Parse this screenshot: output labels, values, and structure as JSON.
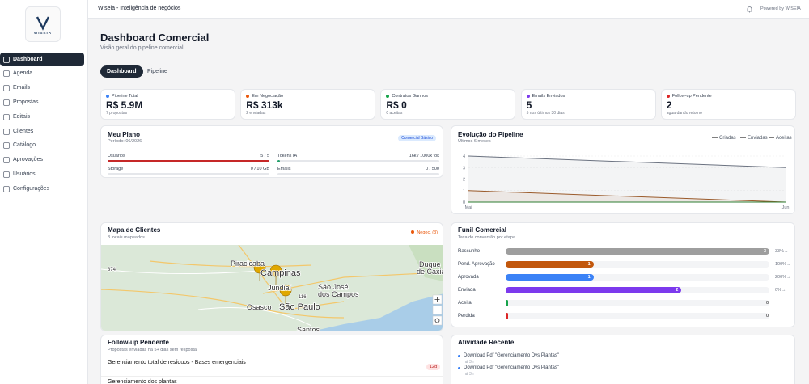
{
  "app": {
    "logo": "WISEIA",
    "title": "Wiseia - Inteligência de negócios",
    "powered": "Powered by WISEIA"
  },
  "sidebar": {
    "active": 0,
    "items": [
      "Dashboard",
      "Agenda",
      "Emails",
      "Propostas",
      "Editais",
      "Clientes",
      "Catálogo",
      "Aprovações",
      "Usuários",
      "Configurações"
    ]
  },
  "header": {
    "title": "Dashboard Comercial",
    "subtitle": "Visão geral do pipeline comercial",
    "tabs": [
      "Dashboard",
      "Pipeline"
    ],
    "active_tab": 0
  },
  "kpis": [
    {
      "label": "Pipeline Total",
      "value": "R$ 5.9M",
      "note": "7 propostas",
      "color": "#3b82f6"
    },
    {
      "label": "Em Negociação",
      "value": "R$ 313k",
      "note": "2 enviadas",
      "color": "#ea580c"
    },
    {
      "label": "Contratos Ganhos",
      "value": "R$ 0",
      "note": "0 aceitas",
      "color": "#16a34a"
    },
    {
      "label": "Emails Enviados",
      "value": "5",
      "note": "5 nos últimos 30 dias",
      "color": "#7c3aed"
    },
    {
      "label": "Follow-up Pendente",
      "value": "2",
      "note": "aguardando retorno",
      "color": "#dc2626"
    }
  ],
  "plan": {
    "title": "Meu Plano",
    "period": "Período: 06/2026",
    "badge": "Comercial Básico",
    "meters": [
      {
        "label": "Usuários",
        "text": "5 / 5",
        "used": 5,
        "limit": 5,
        "color": "#c62828"
      },
      {
        "label": "Tokens IA",
        "text": "16k / 1000k tok",
        "used": 16,
        "limit": 1000,
        "color": "#22a06b"
      },
      {
        "label": "Storage",
        "text": "0 / 10 GB",
        "used": 0,
        "limit": 10,
        "color": "#22a06b"
      },
      {
        "label": "Emails",
        "text": "0 / 500",
        "used": 0,
        "limit": 500,
        "color": "#22a06b"
      }
    ]
  },
  "chart_data": {
    "type": "line",
    "title": "Evolução do Pipeline",
    "subtitle": "Últimos 6 meses",
    "categories": [
      "Mai",
      "Jun"
    ],
    "series": [
      {
        "name": "Criadas",
        "color": "#6b7280",
        "values": [
          4,
          3
        ]
      },
      {
        "name": "Enviadas",
        "color": "#9a5a2a",
        "values": [
          1,
          0
        ]
      },
      {
        "name": "Aceitas",
        "color": "#2e7d32",
        "values": [
          0,
          0
        ]
      }
    ],
    "ylim": [
      0,
      4
    ],
    "yticks": [
      0,
      1,
      2,
      3,
      4
    ],
    "grid": true,
    "area": true
  },
  "map": {
    "title": "Mapa de Clientes",
    "subtitle": "3 locais mapeados",
    "legend": "Negoc. (3)",
    "legend_color": "#ea580c",
    "labels": [
      "Piracicaba",
      "Campinas",
      "Jundiaí",
      "São José",
      "dos Campos",
      "Osasco",
      "São Paulo",
      "Duque",
      "de Caxias",
      "Santos",
      "374",
      "116"
    ]
  },
  "funnel": {
    "title": "Funil Comercial",
    "subtitle": "Taxa de conversão por etapa",
    "xlim": [
      0,
      3
    ],
    "stages": [
      {
        "name": "Rascunho",
        "value": 3,
        "color": "#9e9e9e",
        "conversion": "33%→"
      },
      {
        "name": "Pend. Aprovação",
        "value": 1,
        "color": "#c2570c",
        "conversion": "100%→"
      },
      {
        "name": "Aprovada",
        "value": 1,
        "color": "#3b82f6",
        "conversion": "200%→"
      },
      {
        "name": "Enviada",
        "value": 2,
        "color": "#7c3aed",
        "conversion": "0%→"
      },
      {
        "name": "Aceita",
        "value": 0,
        "color": "#16a34a"
      },
      {
        "name": "Perdida",
        "value": 0,
        "color": "#dc2626"
      }
    ]
  },
  "followup": {
    "title": "Follow-up Pendente",
    "subtitle": "Propostas enviadas há 5+ dias sem resposta",
    "items": [
      {
        "title": "Gerenciamento total de resíduos - Bases emergenciais",
        "badge": "12d"
      },
      {
        "title": "Gerenciamento dos plantas"
      }
    ]
  },
  "activity": {
    "title": "Atividade Recente",
    "items": [
      {
        "text": "Download Pdf \"Gerenciamento Dvs Plantas\"",
        "time": "há 3h"
      },
      {
        "text": "Download Pdf \"Gerenciamento Dvs Plantas\"",
        "time": "há 3h"
      }
    ]
  }
}
